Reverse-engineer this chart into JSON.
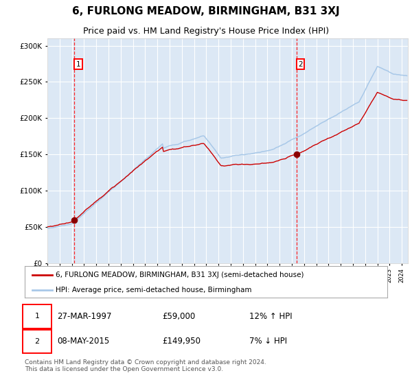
{
  "title": "6, FURLONG MEADOW, BIRMINGHAM, B31 3XJ",
  "subtitle": "Price paid vs. HM Land Registry's House Price Index (HPI)",
  "title_fontsize": 11,
  "subtitle_fontsize": 9,
  "background_color": "#ffffff",
  "plot_bg_color": "#dce8f5",
  "grid_color": "#ffffff",
  "ylim": [
    0,
    310000
  ],
  "yticks": [
    0,
    50000,
    100000,
    150000,
    200000,
    250000,
    300000
  ],
  "ytick_labels": [
    "£0",
    "£50K",
    "£100K",
    "£150K",
    "£200K",
    "£250K",
    "£300K"
  ],
  "hpi_line_color": "#a8c8e8",
  "price_line_color": "#cc0000",
  "sale1_date": "27-MAR-1997",
  "sale1_price": 59000,
  "sale1_hpi_pct": "12% ↑ HPI",
  "sale2_date": "08-MAY-2015",
  "sale2_price": 149950,
  "sale2_hpi_pct": "7% ↓ HPI",
  "legend_label1": "6, FURLONG MEADOW, BIRMINGHAM, B31 3XJ (semi-detached house)",
  "legend_label2": "HPI: Average price, semi-detached house, Birmingham",
  "footer": "Contains HM Land Registry data © Crown copyright and database right 2024.\nThis data is licensed under the Open Government Licence v3.0.",
  "start_year": 1995.0,
  "end_year": 2024.5,
  "sale1_year": 1997.21,
  "sale2_year": 2015.37,
  "sale1_value": 59000,
  "sale2_value": 149950
}
